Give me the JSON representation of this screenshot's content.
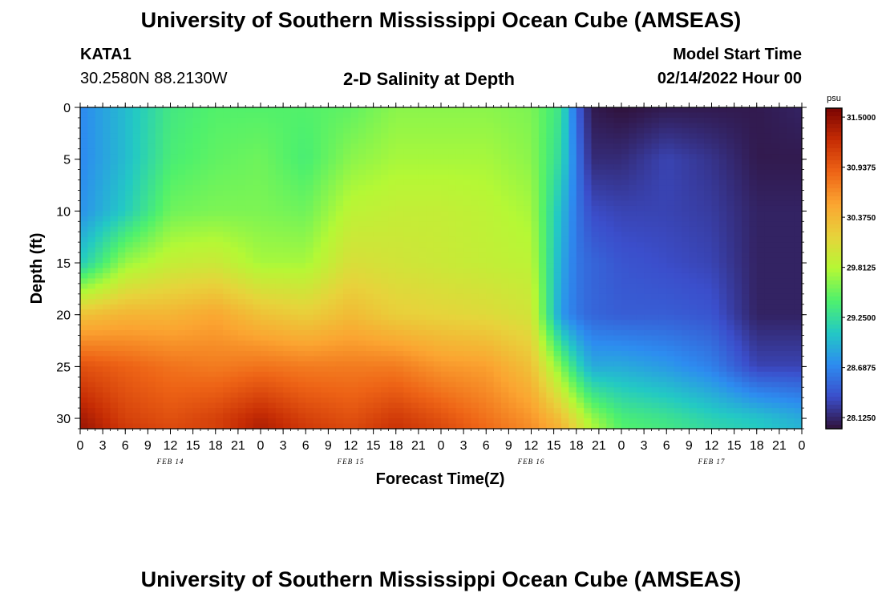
{
  "header": {
    "title": "University of Southern Mississippi Ocean Cube (AMSEAS)",
    "station_id": "KATA1",
    "station_coords": "30.2580N  88.2130W",
    "plot_title": "2-D Salinity at Depth",
    "model_start_label": "Model Start Time",
    "model_start_value": "02/14/2022 Hour 00"
  },
  "footer": {
    "title": "University of Southern Mississippi Ocean Cube (AMSEAS)"
  },
  "chart_data": {
    "type": "heatmap",
    "title": "2-D Salinity at Depth",
    "xlabel": "Forecast Time(Z)",
    "ylabel": "Depth (ft)",
    "x_units": "hours since 02/14/2022 00Z",
    "xlim": [
      0,
      96
    ],
    "ylim": [
      31,
      0
    ],
    "x_ticks": [
      0,
      3,
      6,
      9,
      12,
      15,
      18,
      21,
      24,
      27,
      30,
      33,
      36,
      39,
      42,
      45,
      48,
      51,
      54,
      57,
      60,
      63,
      66,
      69,
      72,
      75,
      78,
      81,
      84,
      87,
      90,
      93,
      96
    ],
    "x_tick_labels": [
      "0",
      "3",
      "6",
      "9",
      "12",
      "15",
      "18",
      "21",
      "0",
      "3",
      "6",
      "9",
      "12",
      "15",
      "18",
      "21",
      "0",
      "3",
      "6",
      "9",
      "12",
      "15",
      "18",
      "21",
      "0",
      "3",
      "6",
      "9",
      "12",
      "15",
      "18",
      "21",
      "0"
    ],
    "date_labels": [
      {
        "hour": 12,
        "label": "FEB 14"
      },
      {
        "hour": 36,
        "label": "FEB 15"
      },
      {
        "hour": 60,
        "label": "FEB 16"
      },
      {
        "hour": 84,
        "label": "FEB 17"
      }
    ],
    "y_ticks": [
      0,
      5,
      10,
      15,
      20,
      25,
      30
    ],
    "y_tick_labels": [
      "0",
      "5",
      "10",
      "15",
      "20",
      "25",
      "30"
    ],
    "hours": [
      0,
      6,
      12,
      18,
      24,
      30,
      36,
      42,
      48,
      54,
      60,
      64,
      66,
      68,
      72,
      78,
      84,
      90,
      96
    ],
    "depths": [
      0,
      5,
      10,
      15,
      20,
      25,
      30,
      31
    ],
    "salinity": [
      [
        28.7,
        29.0,
        29.35,
        29.45,
        29.45,
        29.45,
        29.5,
        29.65,
        29.65,
        29.65,
        29.6,
        29.3,
        28.5,
        28.05,
        28.0,
        28.05,
        28.05,
        28.05,
        28.1
      ],
      [
        28.7,
        29.0,
        29.4,
        29.5,
        29.55,
        29.4,
        29.65,
        29.75,
        29.75,
        29.75,
        29.65,
        29.2,
        28.6,
        28.15,
        28.15,
        28.3,
        28.2,
        28.05,
        28.05
      ],
      [
        28.75,
        29.1,
        29.55,
        29.6,
        29.6,
        29.55,
        29.85,
        29.9,
        29.9,
        29.85,
        29.75,
        29.0,
        28.6,
        28.35,
        28.3,
        28.3,
        28.25,
        28.1,
        28.1
      ],
      [
        29.1,
        29.7,
        29.9,
        29.95,
        29.75,
        29.75,
        30.05,
        30.0,
        29.95,
        29.9,
        29.85,
        28.9,
        28.6,
        28.5,
        28.4,
        28.35,
        28.3,
        28.1,
        28.1
      ],
      [
        30.3,
        30.4,
        30.4,
        30.5,
        30.3,
        30.2,
        30.35,
        30.2,
        30.15,
        30.1,
        30.0,
        28.8,
        28.6,
        28.5,
        28.45,
        28.45,
        28.4,
        28.1,
        28.1
      ],
      [
        31.0,
        30.9,
        30.8,
        30.75,
        30.8,
        30.75,
        30.75,
        30.75,
        30.6,
        30.55,
        30.3,
        29.6,
        29.2,
        28.9,
        28.9,
        28.8,
        28.65,
        28.3,
        28.3
      ],
      [
        31.4,
        31.1,
        31.0,
        31.1,
        31.3,
        31.1,
        31.0,
        31.15,
        31.0,
        30.8,
        30.6,
        30.3,
        30.0,
        29.7,
        29.4,
        29.3,
        29.15,
        29.05,
        28.9
      ],
      [
        31.45,
        31.15,
        31.05,
        31.1,
        31.35,
        31.15,
        31.05,
        31.2,
        31.05,
        30.85,
        30.65,
        30.4,
        30.1,
        29.8,
        29.45,
        29.35,
        29.2,
        29.1,
        28.95
      ]
    ],
    "colorbar": {
      "unit": "psu",
      "range": [
        28.0,
        31.6
      ],
      "tick_values": [
        31.5,
        30.9375,
        30.375,
        29.8125,
        29.25,
        28.6875,
        28.125
      ],
      "tick_labels": [
        "31.5000",
        "30.9375",
        "30.3750",
        "29.8125",
        "29.2500",
        "28.6875",
        "28.1250"
      ],
      "colormap": [
        "#30123b",
        "#3b4ecb",
        "#2d8cf0",
        "#23c9c4",
        "#4ff16c",
        "#b5f835",
        "#e7d33b",
        "#fba531",
        "#ee6416",
        "#c62c04",
        "#7a0403"
      ]
    }
  }
}
